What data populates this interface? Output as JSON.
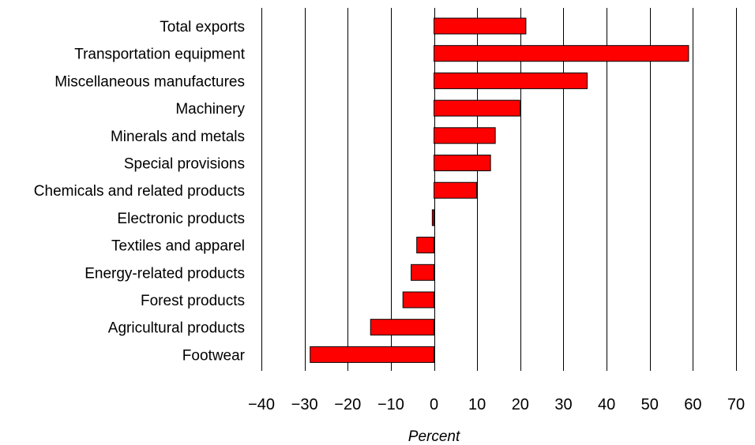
{
  "chart_data": {
    "type": "bar",
    "orientation": "horizontal",
    "categories": [
      "Total exports",
      "Transportation equipment",
      "Miscellaneous manufactures",
      "Machinery",
      "Minerals and metals",
      "Special provisions",
      "Chemicals and related products",
      "Electronic products",
      "Textiles and apparel",
      "Energy-related products",
      "Forest products",
      "Agricultural products",
      "Footwear"
    ],
    "values": [
      21.3,
      59.0,
      35.5,
      19.9,
      14.2,
      13.1,
      9.9,
      -0.4,
      -4.0,
      -5.3,
      -7.2,
      -14.7,
      -28.7
    ],
    "xlabel": "Percent",
    "ylabel": "",
    "title": "",
    "xlim": [
      -40,
      70
    ],
    "xticks": [
      -40,
      -30,
      -20,
      -10,
      0,
      10,
      20,
      30,
      40,
      50,
      60,
      70
    ],
    "xtick_labels": [
      "−40",
      "−30",
      "−20",
      "−10",
      "0",
      "10",
      "20",
      "30",
      "40",
      "50",
      "60",
      "70"
    ],
    "grid": "vertical",
    "bar_color": "#ff0000",
    "bar_edge_color": "#000000"
  }
}
